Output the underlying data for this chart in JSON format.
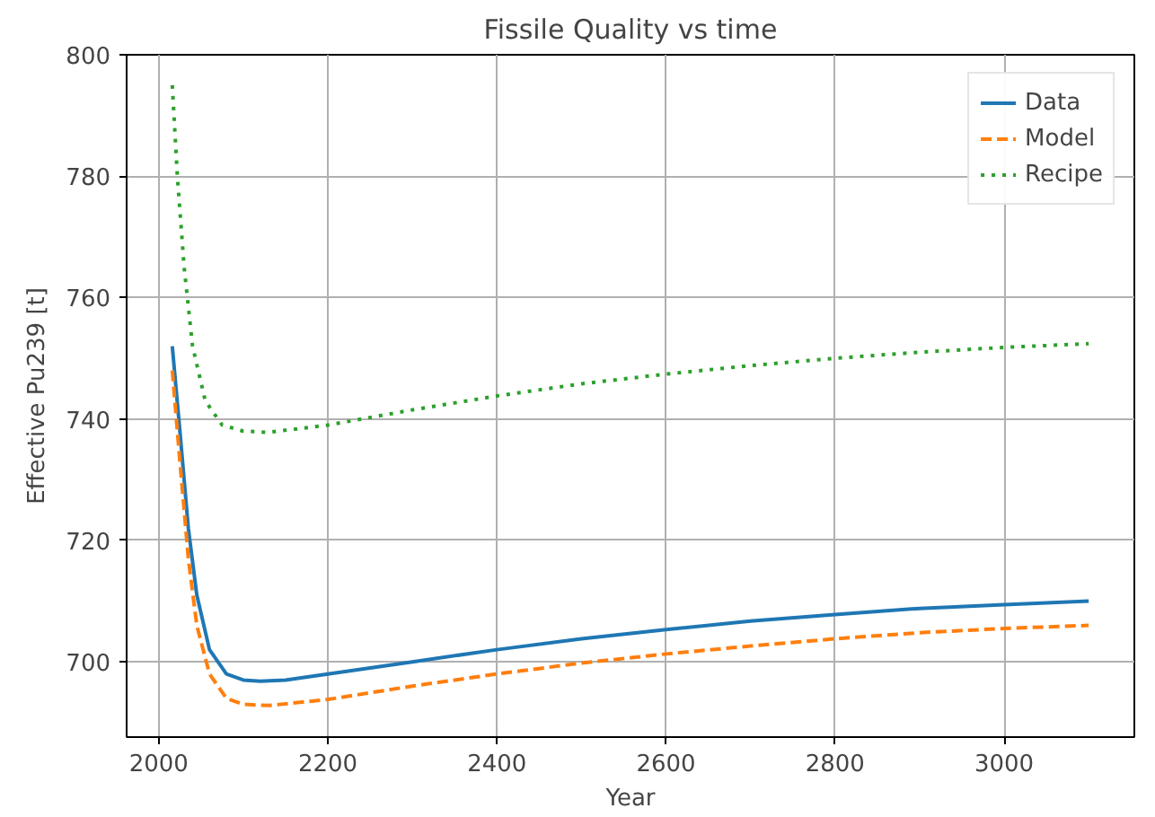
{
  "chart_data": {
    "type": "line",
    "title": "Fissile Quality vs time",
    "xlabel": "Year",
    "ylabel": "Effective Pu239 [t]",
    "xlim": [
      1962,
      3154
    ],
    "ylim": [
      687.6,
      800
    ],
    "xticks": [
      2000,
      2200,
      2400,
      2600,
      2800,
      3000
    ],
    "yticks": [
      700,
      720,
      740,
      760,
      780,
      800
    ],
    "grid": true,
    "legend": "top right",
    "series": [
      {
        "name": "Data",
        "color": "#1f77b4",
        "line_style": "solid",
        "x": [
          2016,
          2025,
          2035,
          2045,
          2060,
          2080,
          2100,
          2120,
          2150,
          2200,
          2300,
          2400,
          2500,
          2600,
          2700,
          2800,
          2900,
          3000,
          3100
        ],
        "values": [
          752,
          738,
          722,
          711,
          702,
          698,
          697,
          696.8,
          697,
          698,
          700,
          702,
          703.8,
          705.3,
          706.7,
          707.8,
          708.8,
          709.4,
          710
        ]
      },
      {
        "name": "Model",
        "color": "#ff7f0e",
        "line_style": "dashed",
        "x": [
          2016,
          2025,
          2035,
          2045,
          2060,
          2080,
          2100,
          2130,
          2200,
          2300,
          2400,
          2500,
          2600,
          2700,
          2800,
          2900,
          3000,
          3100
        ],
        "values": [
          748,
          733,
          717,
          706,
          698,
          694,
          693,
          692.8,
          693.8,
          696,
          698,
          699.8,
          701.3,
          702.6,
          703.8,
          704.8,
          705.5,
          706
        ]
      },
      {
        "name": "Recipe",
        "color": "#2ca02c",
        "line_style": "dotted",
        "x": [
          2016,
          2022,
          2030,
          2040,
          2055,
          2075,
          2100,
          2130,
          2200,
          2300,
          2400,
          2500,
          2600,
          2700,
          2800,
          2900,
          3000,
          3100
        ],
        "values": [
          795,
          780,
          765,
          752,
          743,
          739,
          738,
          737.8,
          739,
          741.5,
          743.8,
          745.8,
          747.4,
          748.8,
          750,
          751,
          751.8,
          752.4
        ]
      }
    ]
  }
}
